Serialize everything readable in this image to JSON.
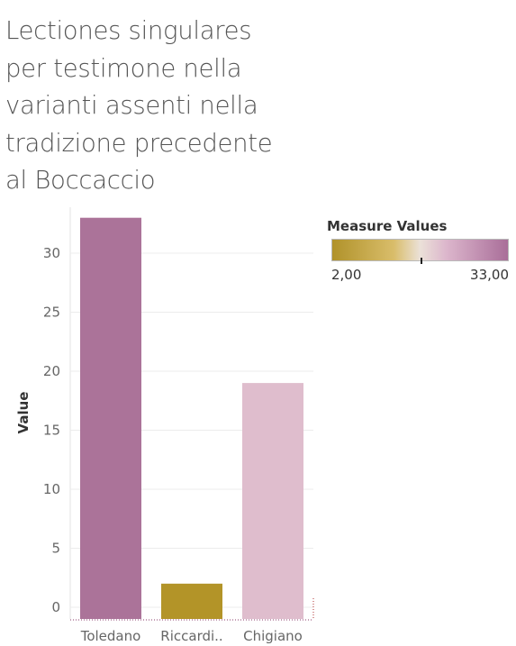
{
  "title_lines": [
    "Lectiones singulares",
    "per testimone nella",
    "varianti assenti nella",
    "tradizione precedente",
    "al Boccaccio"
  ],
  "legend": {
    "title": "Measure Values",
    "min_label": "2,00",
    "max_label": "33,00"
  },
  "colors": {
    "low": "#b0922a",
    "mid": "#ebe1d8",
    "high": "#a96e99",
    "gridline": "#ececec",
    "axis_text": "#666666"
  },
  "chart_data": {
    "type": "bar",
    "categories": [
      "Toledano",
      "Riccardi..",
      "Chigiano"
    ],
    "values": [
      33,
      2,
      19
    ],
    "bar_colors": [
      "#ab7399",
      "#b39428",
      "#dfbdcd"
    ],
    "title": "Lectiones singulares per testimone nella varianti assenti nella tradizione precedente al Boccaccio",
    "xlabel": "",
    "ylabel": "Value",
    "yticks": [
      0,
      5,
      10,
      15,
      20,
      25,
      30
    ],
    "ylim": [
      0,
      34
    ],
    "grid": true,
    "legend_position": "top-right"
  }
}
